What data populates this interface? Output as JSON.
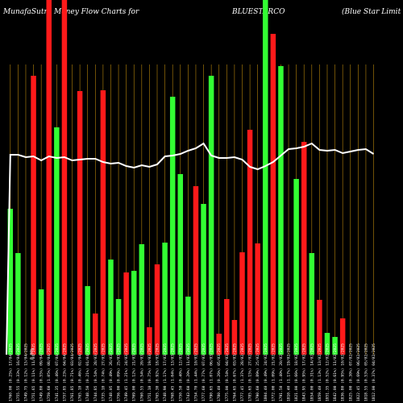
{
  "header": {
    "left": "MunafaSutra  Money Flow  Charts for",
    "middle": "BLUESTARCO",
    "right": "(Blue   Star Limit"
  },
  "chart_data": {
    "type": "bar",
    "title": "MunafaSutra Money Flow Charts for BLUESTARCO (Blue Star Limit",
    "ylim": [
      0,
      440
    ],
    "grid": "vertical lines",
    "bar_colors": {
      "up": "#33ff33",
      "down": "#ff1a1a",
      "line": "#ffffff",
      "grid": "#b8860b",
      "background": "#000000"
    },
    "first_label_note": "0.00%",
    "categories": [
      "1760.00 (0.25%) 17/04/2025",
      "1755.55 (0.33%) 16/04/2025",
      "1749.75 (0.12%) 15/04/2025",
      "1751.65 (0.11%) 11/04/2025",
      "1749.80 (0.55%) 09/04/2025",
      "1759.60 (1.05%) 08/04/2025",
      "1741.35 (0.46%) 07/04/2025",
      "1757.85 (0.23%) 04/04/2025",
      "1761.85 (0.71%) 03/04/2025",
      "1765.10 (0.46%) 02/04/2025",
      "1748.50 (0.21%) 01/04/2025",
      "1744.85 (0.54%) 28/03/2025",
      "1735.10 (0.74%) 27/03/2025",
      "1748.05 (0.49%) 26/03/2025",
      "1756.00 (0.09%) 25/03/2025",
      "1749.45 (1.21%) 24/03/2025",
      "1769.00 (0.12%) 21/03/2025",
      "1760.55 (0.54%) 20/03/2025",
      "1751.10 (0.75%) 19/03/2025",
      "1765.30 (0.92%) 18/03/2025",
      "1748.90 (1.17%) 17/03/2025",
      "1768.45 (1.04%) 13/03/2025",
      "1750.50 (0.40%) 12/03/2025",
      "1743.60 (0.20%) 11/03/2025",
      "1754.70 (1.44%) 10/03/2025",
      "1777.60 (0.77%) 07/03/2025",
      "1790.65 (1.07%) 06/03/2025",
      "1780.40 (0.26%) 05/03/2025",
      "1775.00 (0.54%) 04/03/2025",
      "1764.65 (0.67%) 03/03/2025",
      "1777.45 (1.37%) 28/02/2025",
      "1785.65 (0.15%) 27/02/2025",
      "1790.60 (0.89%) 25/02/2025",
      "1804.40 (0.49%) 24/02/2025",
      "1772.00 (1.09%) 21/02/2025",
      "1791.50 (1.40%) 20/02/2025",
      "1810.40 (1.17%) 19/02/2025",
      "1821.00 (0.66%) 18/02/2025",
      "1843.95 (0.95%) 17/02/2025",
      "1854.00 (0.31%) 14/02/2025",
      "1859.40 (1.13%) 13/02/2025",
      "1851.35 (0.52%) 12/02/2025",
      "1842.00 (0.61%) 11/02/2025",
      "1836.80 (0.95%) 10/02/2025",
      "1825.00 (0.30%) 07/02/2025",
      "1822.45 (0.69%) 06/02/2025",
      "1818.55 (0.53%) 05/02/2025",
      "1812.00 (0.37%) 04/02/2025"
    ],
    "series": [
      {
        "colors": [
          "g",
          "g",
          "g",
          "r",
          "g",
          "r",
          "g",
          "r",
          "g",
          "r",
          "g",
          "r",
          "r",
          "g",
          "g",
          "r",
          "g",
          "g",
          "r",
          "r",
          "g",
          "g",
          "g",
          "g",
          "r",
          "g",
          "g",
          "r",
          "r",
          "r",
          "r",
          "r",
          "r",
          "g",
          "r",
          "g",
          "g",
          "g",
          "r",
          "g",
          "r",
          "g",
          "g",
          "r",
          "r",
          "g",
          "g",
          "g"
        ],
        "values": [
          181,
          126,
          0,
          346,
          81,
          440,
          282,
          440,
          0,
          327,
          85,
          51,
          328,
          118,
          69,
          102,
          104,
          137,
          34,
          112,
          139,
          320,
          224,
          72,
          209,
          187,
          346,
          26,
          69,
          43,
          127,
          279,
          138,
          440,
          398,
          358,
          0,
          218,
          264,
          126,
          68,
          27,
          22,
          45,
          0,
          0,
          0,
          0
        ]
      }
    ],
    "line": [
      248,
      248,
      245,
      246,
      241,
      246,
      244,
      245,
      241,
      242,
      243,
      243,
      239,
      237,
      238,
      234,
      232,
      235,
      233,
      236,
      246,
      247,
      249,
      253,
      256,
      262,
      247,
      244,
      244,
      245,
      242,
      233,
      230,
      234,
      239,
      247,
      255,
      256,
      258,
      262,
      254,
      253,
      254,
      250,
      252,
      254,
      255,
      249
    ]
  }
}
